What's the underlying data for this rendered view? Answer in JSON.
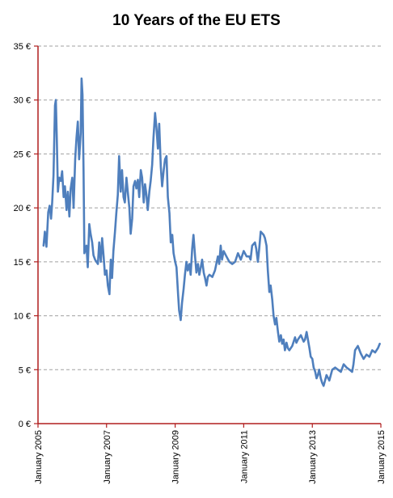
{
  "chart_data": {
    "type": "line",
    "title": "10 Years of the EU ETS",
    "xlabel": "",
    "ylabel": "",
    "ylim": [
      0,
      35
    ],
    "xlim": [
      "2005-01-01",
      "2015-01-01"
    ],
    "y_ticks": [
      0,
      5,
      10,
      15,
      20,
      25,
      30,
      35
    ],
    "y_tick_labels": [
      "0 €",
      "5 €",
      "10 €",
      "15 €",
      "20 €",
      "25 €",
      "30 €",
      "35 €"
    ],
    "x_ticks": [
      "2005-01-01",
      "2007-01-01",
      "2009-01-01",
      "2011-01-01",
      "2013-01-01",
      "2015-01-01"
    ],
    "x_tick_labels": [
      "January 2005",
      "January 2007",
      "January 2009",
      "January 2011",
      "January 2013",
      "January 2015"
    ],
    "grid": {
      "horizontal": true,
      "vertical": false
    },
    "legend": "none",
    "colors": {
      "line": "#4f7fbd",
      "axis": "#b01e1e",
      "grid": "#a0a0a0"
    },
    "series": [
      {
        "x": [
          "2005-03-01",
          "2005-03-15",
          "2005-04-01",
          "2005-04-20",
          "2005-05-05",
          "2005-05-20",
          "2005-06-01",
          "2005-06-15",
          "2005-07-01",
          "2005-07-10",
          "2005-07-20",
          "2005-08-01",
          "2005-08-15",
          "2005-09-01",
          "2005-09-15",
          "2005-10-01",
          "2005-10-15",
          "2005-11-01",
          "2005-11-15",
          "2005-12-01",
          "2005-12-15",
          "2006-01-01",
          "2006-01-15",
          "2006-02-01",
          "2006-02-15",
          "2006-03-01",
          "2006-03-15",
          "2006-04-01",
          "2006-04-10",
          "2006-04-20",
          "2006-05-01",
          "2006-05-10",
          "2006-06-01",
          "2006-06-15",
          "2006-07-01",
          "2006-07-15",
          "2006-08-01",
          "2006-08-15",
          "2006-09-01",
          "2006-10-01",
          "2006-10-15",
          "2006-11-01",
          "2006-11-15",
          "2006-12-01",
          "2006-12-15",
          "2007-01-01",
          "2007-01-15",
          "2007-02-01",
          "2007-02-15",
          "2007-03-01",
          "2007-03-15",
          "2007-04-01",
          "2007-04-15",
          "2007-05-01",
          "2007-05-15",
          "2007-06-01",
          "2007-06-15",
          "2007-07-01",
          "2007-07-15",
          "2007-08-01",
          "2007-08-15",
          "2007-09-01",
          "2007-09-15",
          "2007-10-01",
          "2007-10-15",
          "2007-11-01",
          "2007-11-15",
          "2007-12-01",
          "2007-12-15",
          "2008-01-01",
          "2008-01-15",
          "2008-02-01",
          "2008-02-15",
          "2008-03-01",
          "2008-03-15",
          "2008-04-01",
          "2008-04-15",
          "2008-05-01",
          "2008-05-15",
          "2008-06-01",
          "2008-06-15",
          "2008-07-01",
          "2008-07-15",
          "2008-08-01",
          "2008-08-15",
          "2008-09-01",
          "2008-09-15",
          "2008-10-01",
          "2008-10-15",
          "2008-11-01",
          "2008-11-15",
          "2008-12-01",
          "2008-12-15",
          "2009-01-01",
          "2009-01-15",
          "2009-02-01",
          "2009-02-12",
          "2009-03-01",
          "2009-03-15",
          "2009-04-01",
          "2009-04-15",
          "2009-05-01",
          "2009-05-15",
          "2009-06-01",
          "2009-06-15",
          "2009-07-01",
          "2009-07-15",
          "2009-08-01",
          "2009-08-15",
          "2009-09-01",
          "2009-09-15",
          "2009-10-01",
          "2009-10-15",
          "2009-11-01",
          "2009-11-15",
          "2009-12-01",
          "2009-12-15",
          "2010-01-01",
          "2010-02-01",
          "2010-03-01",
          "2010-04-01",
          "2010-04-15",
          "2010-05-01",
          "2010-05-15",
          "2010-06-01",
          "2010-07-01",
          "2010-08-01",
          "2010-09-01",
          "2010-10-01",
          "2010-11-01",
          "2010-12-01",
          "2011-01-01",
          "2011-02-01",
          "2011-03-01",
          "2011-03-15",
          "2011-04-01",
          "2011-05-01",
          "2011-05-15",
          "2011-06-01",
          "2011-06-15",
          "2011-07-01",
          "2011-08-01",
          "2011-08-15",
          "2011-09-01",
          "2011-09-15",
          "2011-10-01",
          "2011-10-15",
          "2011-11-01",
          "2011-11-15",
          "2011-12-01",
          "2011-12-15",
          "2012-01-01",
          "2012-01-15",
          "2012-02-01",
          "2012-02-15",
          "2012-03-01",
          "2012-03-15",
          "2012-04-01",
          "2012-04-15",
          "2012-05-01",
          "2012-06-01",
          "2012-07-01",
          "2012-07-15",
          "2012-08-01",
          "2012-09-01",
          "2012-10-01",
          "2012-10-15",
          "2012-11-01",
          "2012-12-01",
          "2012-12-15",
          "2013-01-01",
          "2013-01-15",
          "2013-02-01",
          "2013-02-15",
          "2013-03-01",
          "2013-03-15",
          "2013-04-01",
          "2013-04-15",
          "2013-05-01",
          "2013-06-01",
          "2013-07-01",
          "2013-08-01",
          "2013-09-01",
          "2013-10-01",
          "2013-11-01",
          "2013-12-01",
          "2014-01-01",
          "2014-02-01",
          "2014-03-01",
          "2014-03-15",
          "2014-04-01",
          "2014-05-01",
          "2014-06-01",
          "2014-07-01",
          "2014-08-01",
          "2014-09-01",
          "2014-10-01",
          "2014-11-01",
          "2014-12-01",
          "2014-12-20"
        ],
        "y": [
          16.5,
          17.8,
          16.4,
          19.6,
          20.2,
          19.0,
          20.5,
          23.0,
          29.5,
          30.0,
          26.5,
          21.5,
          22.8,
          22.5,
          23.4,
          21.0,
          22.0,
          19.8,
          21.5,
          19.2,
          21.8,
          22.8,
          20.0,
          24.5,
          26.5,
          28.0,
          24.5,
          27.0,
          32.0,
          30.5,
          23.5,
          15.8,
          16.5,
          14.5,
          18.5,
          17.6,
          16.8,
          15.6,
          15.2,
          14.8,
          16.8,
          15.0,
          17.2,
          15.5,
          13.8,
          14.2,
          12.8,
          12.0,
          15.2,
          13.5,
          16.0,
          17.8,
          19.5,
          21.2,
          24.8,
          21.5,
          23.5,
          21.0,
          20.5,
          22.8,
          21.5,
          20.0,
          17.6,
          19.0,
          22.0,
          22.5,
          21.8,
          22.6,
          21.0,
          23.5,
          22.8,
          20.5,
          22.2,
          21.2,
          19.8,
          21.5,
          22.5,
          24.0,
          26.5,
          28.8,
          27.5,
          25.5,
          27.8,
          23.8,
          22.0,
          23.5,
          24.5,
          24.8,
          21.0,
          19.5,
          16.8,
          17.5,
          15.8,
          15.0,
          14.5,
          12.0,
          10.5,
          9.6,
          11.2,
          12.5,
          13.8,
          15.0,
          14.2,
          14.8,
          13.8,
          16.2,
          17.5,
          15.5,
          14.0,
          14.8,
          13.8,
          14.5,
          15.2,
          14.0,
          13.5,
          12.8,
          13.6,
          13.8,
          13.6,
          14.2,
          15.5,
          14.8,
          16.5,
          15.2,
          16.0,
          15.5,
          15.0,
          14.8,
          15.0,
          15.8,
          15.2,
          16.0,
          15.5,
          15.5,
          15.2,
          16.5,
          16.8,
          16.2,
          15.0,
          16.2,
          17.8,
          17.5,
          17.2,
          16.5,
          14.2,
          12.2,
          12.8,
          11.5,
          10.0,
          9.2,
          9.8,
          8.5,
          7.6,
          8.2,
          7.4,
          7.8,
          6.8,
          7.5,
          7.0,
          6.8,
          7.2,
          8.0,
          7.5,
          7.8,
          8.2,
          7.6,
          7.8,
          8.5,
          7.0,
          6.2,
          6.0,
          5.2,
          4.8,
          4.2,
          4.5,
          5.0,
          4.2,
          3.8,
          3.5,
          4.5,
          4.0,
          5.0,
          5.2,
          5.0,
          4.8,
          5.5,
          5.2,
          5.0,
          4.8,
          5.5,
          6.8,
          7.2,
          6.5,
          6.0,
          6.4,
          6.2,
          6.8,
          6.6,
          7.0,
          7.4
        ]
      }
    ]
  }
}
